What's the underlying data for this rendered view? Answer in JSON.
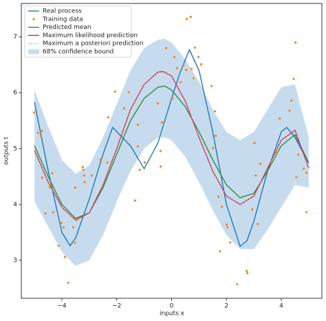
{
  "chart_data": {
    "type": "line",
    "xlabel": "inputs x",
    "ylabel": "outputs t",
    "xlim": [
      -5.48,
      5.48
    ],
    "ylim": [
      2.32,
      7.6
    ],
    "xticks": [
      {
        "value": -4,
        "label": "−4"
      },
      {
        "value": -2,
        "label": "−2"
      },
      0,
      2,
      4
    ],
    "yticks": [
      3,
      4,
      5,
      6,
      7
    ],
    "legend": "upper left",
    "series": [
      {
        "name": "Real process",
        "color": "#1f77b4",
        "type": "line",
        "x": [
          -5,
          -4.5,
          -4,
          -3.7,
          -3.5,
          -3,
          -2.5,
          -2.15,
          -1.5,
          -1,
          -0.5,
          0,
          0.3,
          0.65,
          1,
          1.5,
          2,
          2.5,
          2.75,
          3,
          3.5,
          4,
          4.2,
          4.5,
          5
        ],
        "values": [
          5.83,
          4.6,
          3.5,
          3.26,
          3.4,
          4.1,
          4.9,
          5.38,
          5.05,
          4.64,
          5.1,
          5.9,
          6.35,
          6.77,
          6.4,
          5.3,
          4.0,
          3.25,
          3.35,
          3.7,
          4.6,
          5.3,
          5.38,
          5.2,
          4.74
        ]
      },
      {
        "name": "Training data",
        "color": "#ff7f0e",
        "type": "scatter",
        "x": [
          -5.02,
          -4.87,
          -4.77,
          -4.72,
          -4.72,
          -4.6,
          -4.45,
          -4.42,
          -4.35,
          -4.32,
          -4.12,
          -4.02,
          -3.94,
          -3.89,
          -3.77,
          -3.59,
          -3.52,
          -3.52,
          -3.47,
          -3.24,
          -3.22,
          -3.19,
          -3.17,
          -2.91,
          -2.59,
          -2.34,
          -2.31,
          -2.06,
          -1.73,
          -1.56,
          -1.33,
          -1.23,
          -1.23,
          -1.16,
          -0.98,
          -0.5,
          -0.4,
          -0.4,
          -0.35,
          -0.2,
          0.03,
          0.1,
          0.2,
          0.33,
          0.43,
          0.53,
          0.55,
          0.7,
          0.73,
          0.8,
          0.85,
          0.98,
          1.08,
          1.46,
          1.51,
          1.58,
          1.61,
          1.71,
          1.76,
          1.83,
          2.01,
          2.04,
          2.14,
          2.39,
          2.74,
          2.76,
          2.94,
          3.02,
          3.07,
          3.14,
          3.24,
          3.84,
          3.94,
          4.3,
          4.37,
          4.45,
          4.52,
          4.55,
          4.62,
          4.82,
          4.92,
          4.92
        ],
        "values": [
          5.65,
          5.28,
          5.23,
          5.32,
          4.48,
          3.84,
          4.31,
          4.36,
          4.56,
          3.86,
          3.26,
          3.67,
          3.59,
          3.06,
          2.6,
          3.59,
          4.3,
          3.31,
          3.72,
          4.67,
          4.62,
          4.52,
          4.4,
          4.52,
          4.8,
          4.75,
          5.56,
          6.02,
          5.72,
          6.01,
          4.07,
          5.04,
          5.43,
          4.62,
          4.75,
          5.81,
          4.96,
          4.68,
          5.47,
          6.8,
          5.9,
          6.64,
          6.44,
          6.19,
          6.49,
          6.41,
          7.32,
          7.36,
          6.43,
          6.26,
          6.81,
          6.64,
          6.51,
          6.12,
          5.01,
          5.67,
          5.23,
          4.14,
          3.16,
          3.96,
          3.64,
          3.59,
          3.32,
          2.57,
          2.81,
          2.77,
          3.91,
          5.1,
          4.52,
          3.65,
          4.73,
          4.93,
          5.54,
          5.68,
          5.86,
          6.25,
          6.9,
          4.49,
          4.89,
          4.64,
          4.57,
          3.86
        ]
      },
      {
        "name": "Predicted mean",
        "color": "#2e8b3a",
        "type": "line",
        "x": [
          -5,
          -4.5,
          -4,
          -3.5,
          -3,
          -2.5,
          -2,
          -1.5,
          -1,
          -0.5,
          -0.25,
          0,
          0.5,
          1,
          1.5,
          2,
          2.5,
          3,
          3.5,
          4,
          4.5,
          5
        ],
        "values": [
          5.05,
          4.5,
          4.0,
          3.75,
          3.85,
          4.3,
          4.9,
          5.5,
          5.9,
          6.1,
          6.12,
          6.05,
          5.75,
          5.3,
          4.8,
          4.35,
          4.12,
          4.2,
          4.6,
          5.05,
          5.25,
          4.75
        ]
      },
      {
        "name": "Maximum likelihood prediction",
        "color": "#d62728",
        "type": "line",
        "x": [
          -5,
          -4.5,
          -4,
          -3.5,
          -3,
          -2.5,
          -2,
          -1.5,
          -1,
          -0.5,
          -0.3,
          0,
          0.5,
          1,
          1.5,
          2,
          2.5,
          3,
          3.5,
          4,
          4.5,
          5
        ],
        "values": [
          4.97,
          4.4,
          3.95,
          3.72,
          3.85,
          4.35,
          5.0,
          5.7,
          6.15,
          6.37,
          6.38,
          6.3,
          5.85,
          5.2,
          4.6,
          4.15,
          4.0,
          4.15,
          4.65,
          5.15,
          5.33,
          4.65
        ]
      },
      {
        "name": "Maximum a posteriori prediction",
        "color": "#c77cc7",
        "type": "line",
        "dash": "1.5 2.5",
        "x": [
          -5,
          -4.5,
          -4,
          -3.5,
          -3,
          -2.5,
          -2,
          -1.5,
          -1,
          -0.5,
          -0.3,
          0,
          0.5,
          1,
          1.5,
          2,
          2.5,
          3,
          3.5,
          4,
          4.5,
          5
        ],
        "values": [
          4.97,
          4.4,
          3.95,
          3.72,
          3.85,
          4.35,
          5.0,
          5.7,
          6.15,
          6.37,
          6.38,
          6.3,
          5.85,
          5.2,
          4.6,
          4.15,
          4.0,
          4.15,
          4.65,
          5.15,
          5.33,
          4.65
        ]
      },
      {
        "name": "68% confidence bound",
        "color": "#c6dcee",
        "type": "band",
        "x": [
          -5,
          -4.5,
          -4,
          -3.5,
          -3,
          -2.5,
          -2,
          -1.5,
          -1,
          -0.5,
          -0.25,
          0,
          0.5,
          1,
          1.5,
          2,
          2.5,
          3,
          3.5,
          4,
          4.5,
          5
        ],
        "upper": [
          6.05,
          5.4,
          4.8,
          4.55,
          4.7,
          5.2,
          5.8,
          6.4,
          6.8,
          6.95,
          6.97,
          6.9,
          6.6,
          6.2,
          5.7,
          5.3,
          5.15,
          5.3,
          5.7,
          6.1,
          6.15,
          5.2
        ],
        "lower": [
          4.05,
          3.6,
          3.15,
          2.9,
          3.0,
          3.45,
          4.05,
          4.6,
          5.0,
          5.2,
          5.2,
          5.15,
          4.85,
          4.4,
          3.9,
          3.45,
          3.2,
          3.2,
          3.55,
          3.95,
          4.35,
          4.3
        ]
      }
    ]
  }
}
